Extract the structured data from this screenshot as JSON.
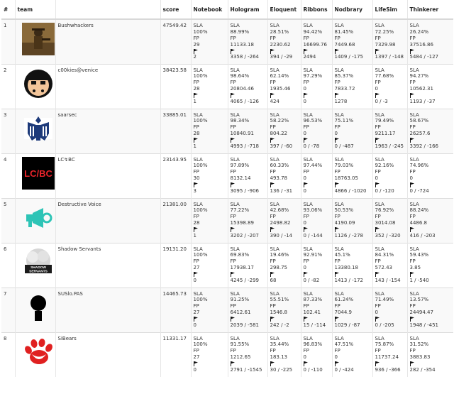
{
  "columns": [
    "#",
    "team",
    "",
    "score",
    "Notebook",
    "Hologram",
    "Eloquent",
    "Ribbons",
    "Nodbrary",
    "LifeSim",
    "Thinkerer"
  ],
  "teams": [
    {
      "rank": "1",
      "name": "Bushwhackers",
      "logo": "bushwhackers-logo",
      "score": "47549.42",
      "services": [
        [
          "SLA",
          "100%",
          "FP",
          "29",
          "2"
        ],
        [
          "SLA",
          "88.99%",
          "FP",
          "11133.18",
          "3358 / -264"
        ],
        [
          "SLA",
          "28.51%",
          "FP",
          "2230.62",
          "394 / -29"
        ],
        [
          "SLA",
          "94.42%",
          "FP",
          "16699.76",
          "2494"
        ],
        [
          "SLA",
          "81.45%",
          "FP",
          "7449.68",
          "1409 / -175"
        ],
        [
          "SLA",
          "72.25%",
          "FP",
          "7329.98",
          "1397 / -148"
        ],
        [
          "SLA",
          "26.24%",
          "FP",
          "37516.86",
          "5484 / -127"
        ]
      ]
    },
    {
      "rank": "2",
      "name": "c00kies@venice",
      "logo": "c00kies-logo",
      "score": "38423.58",
      "services": [
        [
          "SLA",
          "100%",
          "FP",
          "28",
          "1"
        ],
        [
          "SLA",
          "98.64%",
          "FP",
          "20804.46",
          "4065 / -126"
        ],
        [
          "SLA",
          "62.14%",
          "FP",
          "1935.46",
          "424"
        ],
        [
          "SLA",
          "97.29%",
          "FP",
          "0",
          "0"
        ],
        [
          "SLA",
          "85.37%",
          "FP",
          "7833.72",
          "1278"
        ],
        [
          "SLA",
          "77.68%",
          "FP",
          "0",
          "0 / -3"
        ],
        [
          "SLA",
          "94.27%",
          "FP",
          "10562.31",
          "1193 / -37"
        ]
      ]
    },
    {
      "rank": "3",
      "name": "saarsec",
      "logo": "saarsec-logo",
      "score": "33885.01",
      "services": [
        [
          "SLA",
          "100%",
          "FP",
          "28",
          "1"
        ],
        [
          "SLA",
          "98.34%",
          "FP",
          "10840.91",
          "4993 / -718"
        ],
        [
          "SLA",
          "58.22%",
          "FP",
          "804.22",
          "397 / -60"
        ],
        [
          "SLA",
          "96.53%",
          "FP",
          "0",
          "0 / -78"
        ],
        [
          "SLA",
          "75.11%",
          "FP",
          "0",
          "0 / -487"
        ],
        [
          "SLA",
          "79.49%",
          "FP",
          "9211.17",
          "1963 / -245"
        ],
        [
          "SLA",
          "58.67%",
          "FP",
          "26257.6",
          "3392 / -166"
        ]
      ]
    },
    {
      "rank": "4",
      "name": "LC↯BC",
      "logo": "lcbc-logo",
      "score": "23143.95",
      "services": [
        [
          "SLA",
          "100%",
          "FP",
          "30",
          "3"
        ],
        [
          "SLA",
          "97.89%",
          "FP",
          "8132.14",
          "3095 / -906"
        ],
        [
          "SLA",
          "60.33%",
          "FP",
          "493.78",
          "136 / -31"
        ],
        [
          "SLA",
          "97.44%",
          "FP",
          "0",
          "0"
        ],
        [
          "SLA",
          "79.03%",
          "FP",
          "18763.05",
          "4866 / -1020"
        ],
        [
          "SLA",
          "92.16%",
          "FP",
          "0",
          "0 / -120"
        ],
        [
          "SLA",
          "74.96%",
          "FP",
          "0",
          "0 / -724"
        ]
      ]
    },
    {
      "rank": "5",
      "name": "Destructive Voice",
      "logo": "destructive-voice-logo",
      "score": "21381.00",
      "services": [
        [
          "SLA",
          "100%",
          "FP",
          "28",
          "1"
        ],
        [
          "SLA",
          "77.22%",
          "FP",
          "15398.89",
          "3202 / -207"
        ],
        [
          "SLA",
          "42.68%",
          "FP",
          "2498.82",
          "390 / -14"
        ],
        [
          "SLA",
          "93.06%",
          "FP",
          "0",
          "0 / -144"
        ],
        [
          "SLA",
          "50.53%",
          "FP",
          "4190.09",
          "1126 / -278"
        ],
        [
          "SLA",
          "76.92%",
          "FP",
          "3014.08",
          "352 / -320"
        ],
        [
          "SLA",
          "88.24%",
          "FP",
          "4486.8",
          "416 / -203"
        ]
      ]
    },
    {
      "rank": "6",
      "name": "Shadow Servants",
      "logo": "shadow-servants-logo",
      "score": "19131.20",
      "services": [
        [
          "SLA",
          "100%",
          "FP",
          "27",
          "0"
        ],
        [
          "SLA",
          "69.83%",
          "FP",
          "17938.17",
          "4245 / -299"
        ],
        [
          "SLA",
          "19.46%",
          "FP",
          "298.75",
          "68"
        ],
        [
          "SLA",
          "92.91%",
          "FP",
          "0",
          "0 / -82"
        ],
        [
          "SLA",
          "45.1%",
          "FP",
          "13380.18",
          "1413 / -172"
        ],
        [
          "SLA",
          "84.31%",
          "FP",
          "572.43",
          "143 / -154"
        ],
        [
          "SLA",
          "59.43%",
          "FP",
          "3.85",
          "1 / -540"
        ]
      ]
    },
    {
      "rank": "7",
      "name": "SUSlo.PAS",
      "logo": "suslo-pas-logo",
      "score": "14465.73",
      "services": [
        [
          "SLA",
          "100%",
          "FP",
          "27",
          "0"
        ],
        [
          "SLA",
          "91.25%",
          "FP",
          "6412.61",
          "2039 / -581"
        ],
        [
          "SLA",
          "55.51%",
          "FP",
          "1546.8",
          "242 / -2"
        ],
        [
          "SLA",
          "87.33%",
          "FP",
          "102.41",
          "15 / -114"
        ],
        [
          "SLA",
          "61.24%",
          "FP",
          "7044.9",
          "1029 / -87"
        ],
        [
          "SLA",
          "71.49%",
          "FP",
          "0",
          "0 / -205"
        ],
        [
          "SLA",
          "13.57%",
          "FP",
          "24494.47",
          "1948 / -451"
        ]
      ]
    },
    {
      "rank": "8",
      "name": "SiBears",
      "logo": "sibears-logo",
      "score": "11331.17",
      "services": [
        [
          "SLA",
          "100%",
          "FP",
          "27",
          "0"
        ],
        [
          "SLA",
          "91.55%",
          "FP",
          "1212.65",
          "2791 / -1545"
        ],
        [
          "SLA",
          "35.44%",
          "FP",
          "183.13",
          "30 / -225"
        ],
        [
          "SLA",
          "96.83%",
          "FP",
          "0",
          "0 / -110"
        ],
        [
          "SLA",
          "47.51%",
          "FP",
          "0",
          "0 / -424"
        ],
        [
          "SLA",
          "75.87%",
          "FP",
          "11737.24",
          "936 / -366"
        ],
        [
          "SLA",
          "31.52%",
          "FP",
          "3883.83",
          "282 / -354"
        ]
      ]
    }
  ]
}
